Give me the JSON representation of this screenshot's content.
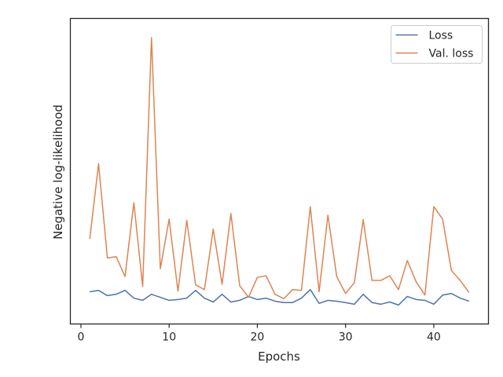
{
  "chart_data": {
    "type": "line",
    "title": "",
    "xlabel": "Epochs",
    "ylabel": "Negative log-likelihood",
    "xlim": [
      -1.2,
      46.2
    ],
    "ylim": [
      0,
      100
    ],
    "xticks": [
      0,
      10,
      20,
      30,
      40
    ],
    "y_tick_labels_shown": false,
    "grid": false,
    "legend": {
      "placement": "top-right"
    },
    "x": [
      1,
      2,
      3,
      4,
      5,
      6,
      7,
      8,
      9,
      10,
      11,
      12,
      13,
      14,
      15,
      16,
      17,
      18,
      19,
      20,
      21,
      22,
      23,
      24,
      25,
      26,
      27,
      28,
      29,
      30,
      31,
      32,
      33,
      34,
      35,
      36,
      37,
      38,
      39,
      40,
      41,
      42,
      43,
      44
    ],
    "series": [
      {
        "name": "Loss",
        "color": "#4c72b0",
        "values": [
          8.1,
          8.6,
          6.7,
          7.2,
          8.6,
          5.8,
          5.0,
          7.2,
          6.1,
          5.0,
          5.3,
          5.8,
          8.6,
          5.8,
          4.4,
          7.2,
          4.4,
          5.0,
          6.4,
          5.3,
          5.8,
          4.7,
          4.2,
          4.2,
          5.8,
          8.9,
          3.9,
          5.0,
          4.7,
          4.2,
          3.6,
          7.2,
          4.2,
          3.6,
          4.4,
          3.3,
          6.4,
          5.3,
          5.0,
          3.6,
          6.9,
          7.5,
          5.8,
          4.7
        ]
      },
      {
        "name": "Val. loss",
        "color": "#dd8452",
        "values": [
          27.2,
          54.4,
          20.3,
          20.8,
          13.6,
          40.3,
          10.0,
          100.0,
          16.4,
          34.4,
          8.3,
          33.9,
          10.6,
          8.9,
          30.8,
          10.8,
          36.4,
          10.3,
          6.1,
          13.3,
          13.9,
          7.2,
          5.6,
          8.9,
          8.6,
          38.9,
          8.1,
          35.8,
          13.6,
          7.5,
          11.4,
          34.2,
          12.2,
          12.2,
          13.9,
          8.9,
          19.4,
          11.7,
          6.9,
          38.9,
          34.4,
          15.8,
          12.2,
          7.8
        ]
      }
    ]
  }
}
